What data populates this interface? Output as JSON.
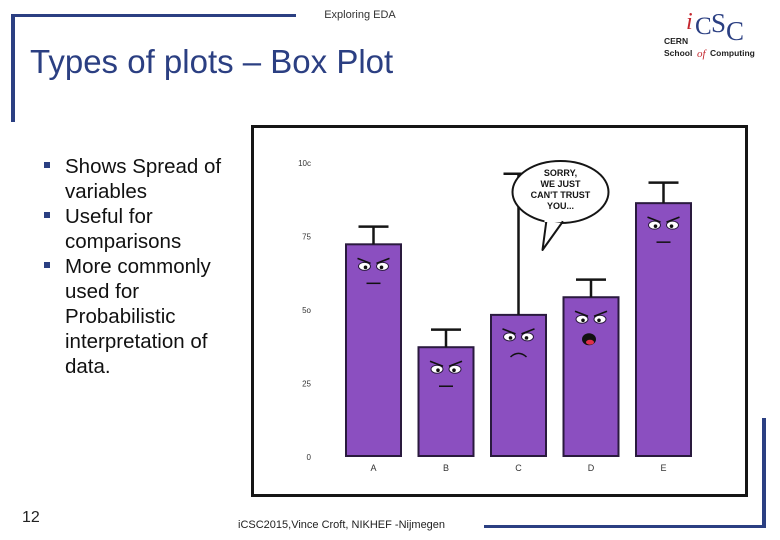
{
  "header": {
    "label": "Exploring EDA"
  },
  "slide": {
    "title": "Types of plots – Box Plot",
    "bullets": [
      "Shows Spread of variables",
      "Useful for comparisons",
      "More commonly used for Probabilistic interpretation of data."
    ],
    "page_number": "12",
    "footer": "iCSC2015,Vince Croft, NIKHEF -Nijmegen"
  },
  "logo": {
    "letters": [
      "i",
      "C",
      "S",
      "C"
    ],
    "line1": "CERN",
    "line2_a": "School",
    "line2_b": "of",
    "line2_c": "Computing"
  },
  "colors": {
    "accent": "#2b3f82",
    "bar": "#8b4fc0",
    "bar_edge": "#2a1a3e",
    "logo_red": "#c4262e"
  },
  "chart_data": {
    "type": "bar",
    "categories": [
      "A",
      "B",
      "C",
      "D",
      "E"
    ],
    "values": [
      72,
      37,
      48,
      54,
      86
    ],
    "error_upper": [
      78,
      43,
      96,
      60,
      93
    ],
    "ytick_labels": [
      "0",
      "25",
      "5o",
      "75",
      "10c"
    ],
    "ytick_values": [
      0,
      25,
      50,
      75,
      100
    ],
    "ylim": [
      0,
      100
    ],
    "bar_color": "#8b4fc0",
    "grid": false,
    "speech_bubble": [
      "SORRY,",
      "WE JUST",
      "CAN'T TRUST",
      "YOU..."
    ],
    "speech_bubble_category": "C"
  }
}
